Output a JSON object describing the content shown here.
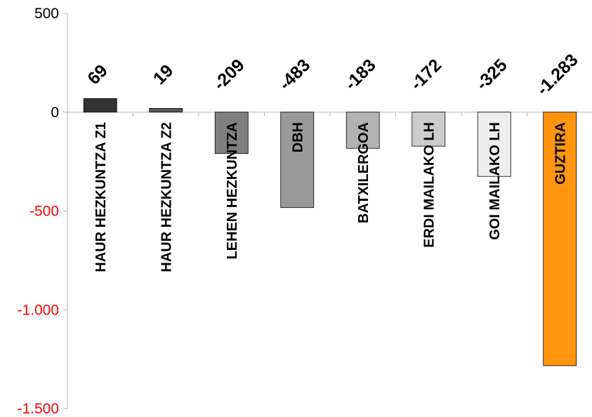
{
  "chart_data": {
    "type": "bar",
    "categories": [
      "HAUR HEZKUNTZA Z1",
      "HAUR HEZKUNTZA Z2",
      "LEHEN HEZKUNTZA",
      "DBH",
      "BATXILERGOA",
      "ERDI MAILAKO LH",
      "GOI MAILAKO LH",
      "GUZTIRA"
    ],
    "values": [
      69,
      19,
      -209,
      -483,
      -183,
      -172,
      -325,
      -1283
    ],
    "data_labels": [
      "69",
      "19",
      "-209",
      "-483",
      "-183",
      "-172",
      "-325",
      "-1.283"
    ],
    "ylim": [
      -1500,
      500
    ],
    "yticks": [
      500,
      0,
      -500,
      -1000,
      -1500
    ],
    "ytick_labels": [
      "500",
      "0",
      "-500",
      "-1.000",
      "-1.500"
    ],
    "grid": false,
    "legend": "none",
    "colors": {
      "bars": [
        "#333333",
        "#595959",
        "#7f7f7f",
        "#999999",
        "#b2b2b2",
        "#cccccc",
        "#eeeeee",
        "#ff950e"
      ],
      "positive_tick": "#000000",
      "negative_tick": "#ff0000",
      "axis": "#b3b3b3"
    }
  }
}
